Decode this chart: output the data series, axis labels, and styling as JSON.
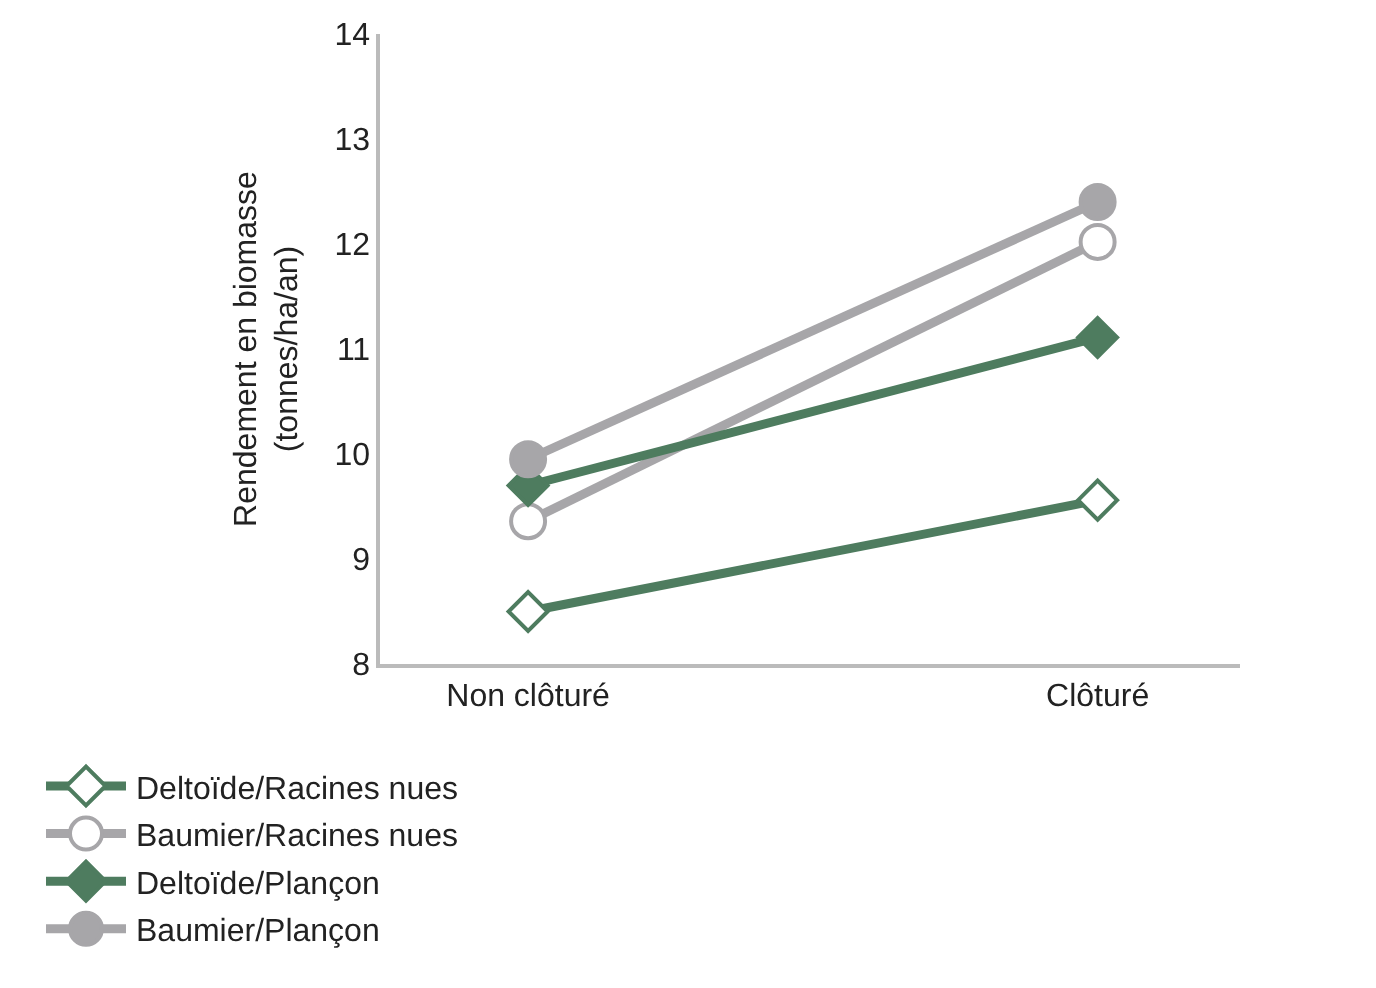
{
  "chart_data": {
    "type": "line",
    "ylabel": "Rendement en biomasse\n(tonnes/ha/an)",
    "categories": [
      "Non clôturé",
      "Clôturé"
    ],
    "ylim": [
      8,
      14
    ],
    "yticks": [
      8,
      9,
      10,
      11,
      12,
      13,
      14
    ],
    "grid": false,
    "legend": "bottom",
    "series": [
      {
        "name": "Deltoïde/Racines nues",
        "color": "#4e7c5f",
        "marker": "diamond-open",
        "values": [
          8.5,
          9.56
        ]
      },
      {
        "name": "Baumier/Racines nues",
        "color": "#a7a6a9",
        "marker": "circle-open",
        "values": [
          9.36,
          12.02
        ]
      },
      {
        "name": "Deltoïde/Plançon",
        "color": "#4e7c5f",
        "marker": "diamond",
        "values": [
          9.7,
          11.11
        ]
      },
      {
        "name": "Baumier/Plançon",
        "color": "#a7a6a9",
        "marker": "circle",
        "values": [
          9.95,
          12.4
        ]
      }
    ]
  }
}
